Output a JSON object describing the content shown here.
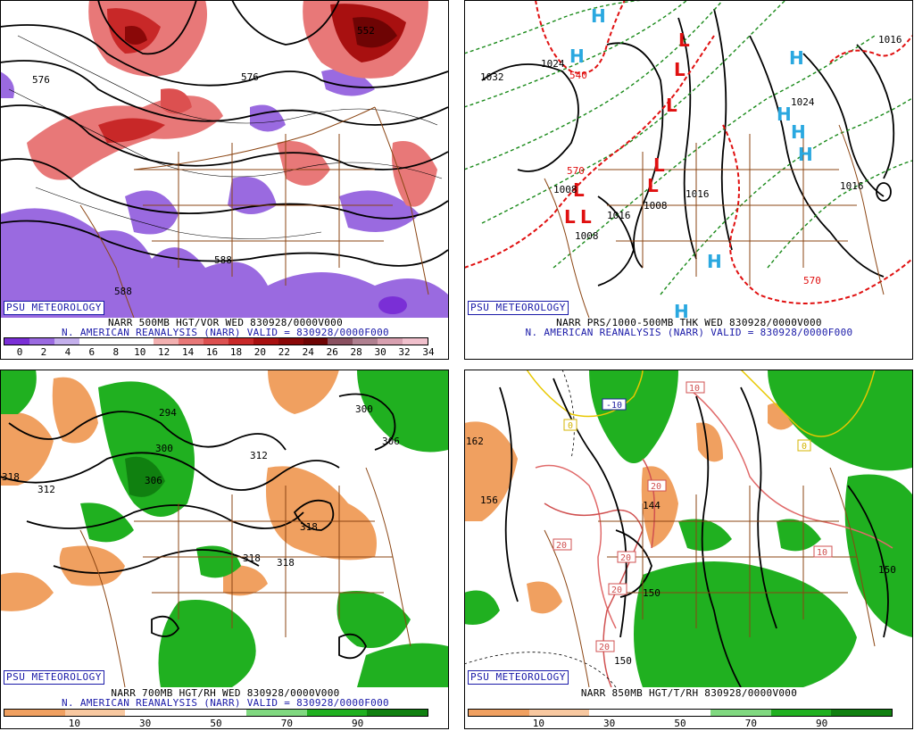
{
  "panels": [
    {
      "id": "vort500",
      "logo": "PSU METEOROLOGY",
      "caption_line1": "NARR 500MB HGT/VOR WED 830928/0000V000",
      "caption_line2": "N. AMERICAN REANALYSIS (NARR) VALID = 830928/0000F000",
      "colorbar": {
        "colors": [
          "#7a2fd6",
          "#9a6ae0",
          "#c4b0ec",
          "#ffffff",
          "#ffffff",
          "#ffffff",
          "#f2b0b0",
          "#e87878",
          "#dc5050",
          "#c82828",
          "#a81010",
          "#8a0808",
          "#6e0404",
          "#8a5060",
          "#b08090",
          "#d8a0b0",
          "#f0c0cc"
        ],
        "ticks": [
          "0",
          "2",
          "4",
          "6",
          "8",
          "10",
          "12",
          "14",
          "16",
          "18",
          "20",
          "22",
          "24",
          "26",
          "28",
          "30",
          "32",
          "34"
        ]
      },
      "labels": [
        "576",
        "576",
        "588",
        "588",
        "552"
      ]
    },
    {
      "id": "thk",
      "logo": "PSU METEOROLOGY",
      "caption_line1": "NARR PRS/1000-500MB THK WED 830928/0000V000",
      "caption_line2": "N. AMERICAN REANALYSIS (NARR) VALID = 830928/0000F000",
      "labels": [
        "1032",
        "1024",
        "1016",
        "1008",
        "1008",
        "1016",
        "1008",
        "1016",
        "1024",
        "1016",
        "570",
        "570",
        "540"
      ]
    },
    {
      "id": "rh700",
      "logo": "PSU METEOROLOGY",
      "caption_line1": "NARR 700MB HGT/RH WED 830928/0000V000",
      "caption_line2": "N. AMERICAN REANALYSIS (NARR) VALID = 830928/0000F000",
      "colorbar": {
        "colors": [
          "#f0a060",
          "#f8c8a0",
          "#ffffff",
          "#ffffff",
          "#80d880",
          "#20b020",
          "#108010"
        ],
        "ticks": [
          "10",
          "30",
          "50",
          "70",
          "90"
        ]
      },
      "labels": [
        "294",
        "300",
        "306",
        "312",
        "318",
        "312",
        "318",
        "318",
        "318",
        "300",
        "306"
      ]
    },
    {
      "id": "t850",
      "logo": "PSU METEOROLOGY",
      "caption_line1": "NARR 850MB HGT/T/RH 830928/0000V000",
      "colorbar": {
        "colors": [
          "#f0a060",
          "#f8c8a0",
          "#ffffff",
          "#ffffff",
          "#80d880",
          "#20b020",
          "#108010"
        ],
        "ticks": [
          "10",
          "30",
          "50",
          "70",
          "90"
        ]
      },
      "labels": [
        "162",
        "156",
        "144",
        "150",
        "150",
        "150",
        "-10",
        "0",
        "0",
        "10",
        "20",
        "20",
        "20",
        "20",
        "20",
        "10"
      ]
    }
  ]
}
